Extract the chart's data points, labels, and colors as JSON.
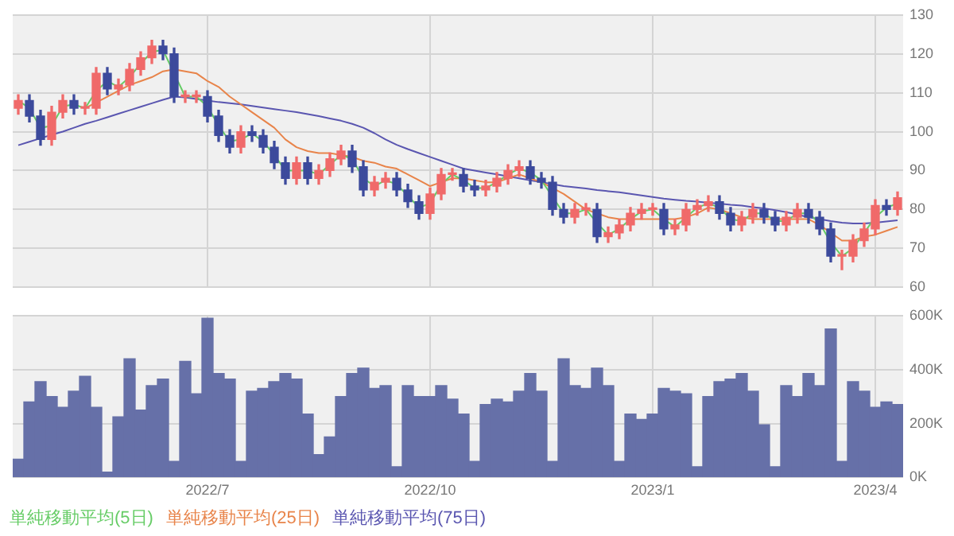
{
  "chart_data": [
    {
      "type": "candlestick",
      "categories": [
        null,
        null,
        null,
        null,
        null,
        null,
        null,
        null,
        null,
        null,
        null,
        null,
        null,
        null,
        null,
        null,
        null,
        "2022/7",
        null,
        null,
        null,
        null,
        null,
        null,
        null,
        null,
        null,
        null,
        null,
        null,
        null,
        null,
        null,
        null,
        null,
        null,
        null,
        "2022/10",
        null,
        null,
        null,
        null,
        null,
        null,
        null,
        null,
        null,
        null,
        null,
        null,
        null,
        null,
        null,
        null,
        null,
        null,
        null,
        "2023/1",
        null,
        null,
        null,
        null,
        null,
        null,
        null,
        null,
        null,
        null,
        null,
        null,
        null,
        null,
        null,
        null,
        null,
        null,
        null,
        "2023/4",
        null,
        null
      ],
      "ohlc": [
        [
          106,
          109.5,
          104.5,
          108
        ],
        [
          108,
          109.5,
          102.5,
          104
        ],
        [
          104,
          105.5,
          96.5,
          98
        ],
        [
          98,
          106.5,
          96.5,
          105
        ],
        [
          105,
          109.5,
          103.5,
          108
        ],
        [
          108,
          109.5,
          104.5,
          106
        ],
        [
          106,
          107.5,
          104.5,
          106
        ],
        [
          106,
          116.5,
          104.5,
          115
        ],
        [
          115,
          116.5,
          109.5,
          111
        ],
        [
          111,
          113.5,
          109.5,
          112
        ],
        [
          112,
          117.5,
          110.5,
          116
        ],
        [
          116,
          120.5,
          114.5,
          119
        ],
        [
          119,
          123.5,
          117.5,
          122
        ],
        [
          122,
          123.5,
          118.5,
          120
        ],
        [
          120,
          121.5,
          107.5,
          109
        ],
        [
          109,
          110.5,
          107.5,
          109
        ],
        [
          109,
          110.5,
          107.5,
          109
        ],
        [
          109,
          110.5,
          102.5,
          104
        ],
        [
          104,
          105.5,
          97.5,
          99
        ],
        [
          99,
          100.5,
          94.5,
          96
        ],
        [
          96,
          101.5,
          94.5,
          100
        ],
        [
          100,
          101.5,
          97.5,
          99
        ],
        [
          99,
          100.5,
          94.5,
          96
        ],
        [
          96,
          97.5,
          90.5,
          92
        ],
        [
          92,
          93.5,
          86.5,
          88
        ],
        [
          88,
          93.5,
          86.5,
          92
        ],
        [
          92,
          93.5,
          86.5,
          88
        ],
        [
          88,
          91.5,
          86.5,
          90
        ],
        [
          90,
          94.5,
          88.5,
          93
        ],
        [
          93,
          96.5,
          91.5,
          95
        ],
        [
          95,
          96.5,
          89.5,
          91
        ],
        [
          91,
          92.5,
          83.5,
          85
        ],
        [
          85,
          88.5,
          83.5,
          87
        ],
        [
          87,
          89.5,
          85.5,
          88
        ],
        [
          88,
          89.5,
          83.5,
          85
        ],
        [
          85,
          86.5,
          80.5,
          82
        ],
        [
          82,
          83.5,
          77.5,
          79
        ],
        [
          79,
          85.5,
          77.5,
          84
        ],
        [
          84,
          90.5,
          82.5,
          89
        ],
        [
          89,
          90.5,
          87.5,
          89
        ],
        [
          89,
          90.5,
          84.5,
          86
        ],
        [
          86,
          87.5,
          83.5,
          85
        ],
        [
          85,
          87.5,
          83.5,
          86
        ],
        [
          86,
          89.5,
          84.5,
          88
        ],
        [
          88,
          91.5,
          86.5,
          90
        ],
        [
          90,
          92.5,
          88.5,
          91
        ],
        [
          91,
          92.5,
          86.5,
          88
        ],
        [
          88,
          89.5,
          85.5,
          87
        ],
        [
          87,
          88.5,
          78.5,
          80
        ],
        [
          80,
          81.5,
          76.5,
          78
        ],
        [
          78,
          81.5,
          76.5,
          80
        ],
        [
          80,
          81.5,
          78.5,
          80
        ],
        [
          80,
          81.5,
          71.5,
          73
        ],
        [
          73,
          75.5,
          71.5,
          74
        ],
        [
          74,
          77.5,
          72.5,
          76
        ],
        [
          76,
          80.5,
          74.5,
          79
        ],
        [
          79,
          81.5,
          77.5,
          80
        ],
        [
          80,
          81.5,
          78.5,
          80
        ],
        [
          80,
          81.5,
          73.5,
          75
        ],
        [
          75,
          77.5,
          73.5,
          76
        ],
        [
          76,
          81.5,
          74.5,
          80
        ],
        [
          80,
          82.5,
          78.5,
          81
        ],
        [
          81,
          83.5,
          79.5,
          82
        ],
        [
          82,
          83.5,
          77.5,
          79
        ],
        [
          79,
          80.5,
          74.5,
          76
        ],
        [
          76,
          79.5,
          74.5,
          78
        ],
        [
          78,
          81.5,
          76.5,
          80
        ],
        [
          80,
          81.5,
          76.5,
          78
        ],
        [
          78,
          79.5,
          74.5,
          76
        ],
        [
          76,
          79.5,
          74.5,
          78
        ],
        [
          78,
          81.5,
          76.5,
          80
        ],
        [
          80,
          81.5,
          76.5,
          78
        ],
        [
          78,
          79.5,
          73.5,
          75
        ],
        [
          75,
          76.5,
          66.5,
          68
        ],
        [
          68,
          69.5,
          64.5,
          68
        ],
        [
          68,
          73.5,
          66.5,
          72
        ],
        [
          72,
          76.5,
          70.5,
          75
        ],
        [
          75,
          82.5,
          73.5,
          81
        ],
        [
          81,
          82.5,
          78.5,
          80
        ],
        [
          80,
          84.5,
          78.5,
          83
        ]
      ],
      "colors": [
        "#f06a6a",
        "#3c4a9c",
        "#3c4a9c",
        "#f06a6a",
        "#f06a6a",
        "#3c4a9c",
        "#f06a6a",
        "#f06a6a",
        "#3c4a9c",
        "#f06a6a",
        "#f06a6a",
        "#f06a6a",
        "#f06a6a",
        "#3c4a9c",
        "#3c4a9c",
        "#f06a6a",
        "#f06a6a",
        "#3c4a9c",
        "#3c4a9c",
        "#3c4a9c",
        "#f06a6a",
        "#3c4a9c",
        "#3c4a9c",
        "#3c4a9c",
        "#3c4a9c",
        "#f06a6a",
        "#3c4a9c",
        "#f06a6a",
        "#f06a6a",
        "#f06a6a",
        "#3c4a9c",
        "#3c4a9c",
        "#f06a6a",
        "#f06a6a",
        "#3c4a9c",
        "#3c4a9c",
        "#3c4a9c",
        "#f06a6a",
        "#f06a6a",
        "#f06a6a",
        "#3c4a9c",
        "#3c4a9c",
        "#f06a6a",
        "#f06a6a",
        "#f06a6a",
        "#f06a6a",
        "#3c4a9c",
        "#3c4a9c",
        "#3c4a9c",
        "#3c4a9c",
        "#f06a6a",
        "#f06a6a",
        "#3c4a9c",
        "#f06a6a",
        "#f06a6a",
        "#f06a6a",
        "#f06a6a",
        "#f06a6a",
        "#3c4a9c",
        "#f06a6a",
        "#f06a6a",
        "#f06a6a",
        "#f06a6a",
        "#3c4a9c",
        "#3c4a9c",
        "#f06a6a",
        "#f06a6a",
        "#3c4a9c",
        "#3c4a9c",
        "#f06a6a",
        "#f06a6a",
        "#3c4a9c",
        "#3c4a9c",
        "#3c4a9c",
        "#f06a6a",
        "#f06a6a",
        "#f06a6a",
        "#f06a6a",
        "#3c4a9c",
        "#f06a6a"
      ],
      "series": [
        {
          "type": "line",
          "name": "単純移動平均(5日)",
          "color": "#66cc66",
          "values": [
            108,
            106,
            101,
            101.5,
            106.5,
            107,
            106,
            110.5,
            113,
            111.5,
            114,
            117.5,
            120.5,
            121,
            null,
            109,
            109,
            106.5,
            101.5,
            97.5,
            98,
            99.5,
            97.5,
            94,
            90,
            90,
            90,
            89,
            91.5,
            94,
            93,
            88,
            86,
            87.5,
            86.5,
            83.5,
            80.5,
            81.5,
            86.5,
            89,
            87.5,
            85.5,
            85.5,
            87,
            89,
            90.5,
            89.5,
            87.5,
            null,
            79,
            79,
            80,
            76.5,
            73.5,
            75,
            77.5,
            79.5,
            80,
            77.5,
            75.5,
            78,
            80.5,
            81.5,
            80.5,
            77.5,
            77,
            79,
            79,
            77,
            77,
            79,
            79,
            76.5,
            71.5,
            68,
            70,
            null,
            78,
            80.5,
            81.5
          ]
        },
        {
          "type": "line",
          "name": "単純移動平均(25日)",
          "color": "#e8844a",
          "values": [
            null,
            null,
            null,
            null,
            null,
            null,
            106,
            107.5,
            109,
            110.5,
            112,
            113,
            114,
            115.5,
            116,
            115.5,
            115,
            113,
            111.5,
            109,
            107,
            105,
            103,
            101,
            98,
            96,
            95,
            94.5,
            94.5,
            94,
            93.5,
            92.5,
            92,
            91,
            90.5,
            89,
            87.5,
            86,
            87,
            88,
            88,
            87.5,
            87,
            87,
            88,
            89,
            88,
            87,
            85.5,
            84,
            82,
            80,
            79,
            78,
            77.5,
            77.5,
            77.5,
            77.5,
            77.5,
            77.5,
            78,
            79,
            80.5,
            80,
            79,
            78,
            77.5,
            77.5,
            77.5,
            77.5,
            77.5,
            77.5,
            76,
            74,
            72,
            72,
            73,
            73.5,
            74.5,
            75.5
          ]
        },
        {
          "type": "line",
          "name": "単純移動平均(75日)",
          "color": "#5a56b0",
          "values": [
            96.5,
            97.4,
            98.3,
            99.2,
            100,
            101,
            102,
            102.8,
            103.7,
            104.6,
            105.5,
            106.4,
            107.3,
            108.2,
            109,
            108.8,
            108.4,
            108,
            107.6,
            107.3,
            107,
            106.6,
            106.2,
            105.8,
            105.4,
            105,
            104.5,
            104,
            103.4,
            102.8,
            102,
            101,
            99.6,
            98,
            96.6,
            95.5,
            94.5,
            93.5,
            92.5,
            91.5,
            90.5,
            90,
            89.5,
            89,
            88.5,
            88,
            87.5,
            87,
            86.5,
            86,
            85.7,
            85.4,
            85,
            84.7,
            84.4,
            84,
            83.6,
            83.2,
            82.8,
            82.5,
            82.2,
            82,
            81.7,
            81.5,
            81.2,
            81,
            80.6,
            80.3,
            79.8,
            79.3,
            78.7,
            78,
            77.5,
            77,
            76.6,
            76.4,
            76.4,
            76.6,
            76.9,
            77.2
          ]
        }
      ],
      "ylim": [
        60,
        130
      ],
      "yticks": [
        60,
        70,
        80,
        90,
        100,
        110,
        120,
        130
      ],
      "grid": true,
      "legend": "bottom",
      "tick_labels": "y"
    },
    {
      "type": "bar",
      "categories": [
        null,
        null,
        null,
        null,
        null,
        null,
        null,
        null,
        null,
        null,
        null,
        null,
        null,
        null,
        null,
        null,
        null,
        "2022/7",
        null,
        null,
        null,
        null,
        null,
        null,
        null,
        null,
        null,
        null,
        null,
        null,
        null,
        null,
        null,
        null,
        null,
        null,
        null,
        "2022/10",
        null,
        null,
        null,
        null,
        null,
        null,
        null,
        null,
        null,
        null,
        null,
        null,
        null,
        null,
        null,
        null,
        null,
        null,
        null,
        "2023/1",
        null,
        null,
        null,
        null,
        null,
        null,
        null,
        null,
        null,
        null,
        null,
        null,
        null,
        null,
        null,
        null,
        null,
        null,
        null,
        "2023/4",
        null,
        null
      ],
      "color": "#6670a8",
      "values": [
        68000,
        280000,
        355000,
        300000,
        260000,
        320000,
        375000,
        260000,
        20000,
        225000,
        440000,
        250000,
        340000,
        365000,
        60000,
        430000,
        310000,
        590000,
        385000,
        365000,
        60000,
        320000,
        330000,
        355000,
        385000,
        365000,
        235000,
        85000,
        150000,
        300000,
        385000,
        405000,
        330000,
        340000,
        40000,
        340000,
        300000,
        300000,
        340000,
        290000,
        235000,
        60000,
        270000,
        290000,
        280000,
        320000,
        385000,
        320000,
        60000,
        440000,
        340000,
        330000,
        405000,
        340000,
        60000,
        235000,
        215000,
        235000,
        330000,
        320000,
        310000,
        40000,
        300000,
        355000,
        365000,
        385000,
        320000,
        195000,
        40000,
        340000,
        300000,
        385000,
        340000,
        550000,
        60000,
        355000,
        320000,
        260000,
        280000,
        270000
      ],
      "ylim": [
        0,
        600000
      ],
      "yticks": [
        {
          "value": 0,
          "label": "0K"
        },
        {
          "value": 200000,
          "label": "200K"
        },
        {
          "value": 400000,
          "label": "400K"
        },
        {
          "value": 600000,
          "label": "600K"
        }
      ],
      "grid": true
    }
  ]
}
